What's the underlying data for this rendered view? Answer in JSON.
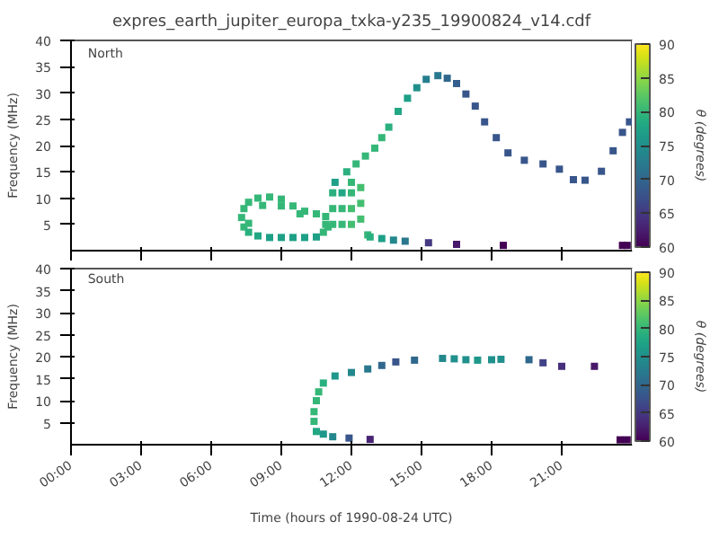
{
  "chart_data": [
    {
      "type": "scatter",
      "title": "expres_earth_jupiter_europa_txka-y235_19900824_v14.cdf",
      "ylabel": "Frequency (MHz)",
      "clabel": "θ (degrees)",
      "annotations": [
        "North"
      ],
      "marker": "square",
      "grid": false,
      "tick_labels": "y",
      "xlim": [
        0,
        24
      ],
      "xticks": [
        {
          "value": 0,
          "label": null
        },
        {
          "value": 3,
          "label": null
        },
        {
          "value": 6,
          "label": null
        },
        {
          "value": 9,
          "label": null
        },
        {
          "value": 12,
          "label": null
        },
        {
          "value": 15,
          "label": null
        },
        {
          "value": 18,
          "label": null
        },
        {
          "value": 21,
          "label": null
        }
      ],
      "ylim": [
        0,
        40
      ],
      "yticks": [
        5,
        10,
        15,
        20,
        25,
        30,
        35,
        40
      ],
      "clim": [
        60,
        90
      ],
      "cticks": [
        60,
        65,
        70,
        75,
        80,
        85,
        90
      ],
      "x": [
        7.3,
        7.4,
        7.6,
        8.0,
        8.5,
        9.0,
        9.5,
        10.0,
        10.5,
        10.9,
        7.4,
        7.6,
        8.0,
        8.5,
        9.0,
        9.5,
        10.0,
        10.5,
        10.8,
        10.9,
        8.2,
        9.0,
        9.8,
        7.6,
        11.2,
        11.2,
        11.2,
        11.6,
        11.6,
        11.6,
        12.0,
        12.0,
        12.0,
        12.0,
        12.4,
        12.4,
        12.4,
        12.7,
        11.0,
        11.3,
        11.8,
        12.2,
        12.6,
        13.0,
        13.3,
        13.6,
        14.0,
        14.4,
        14.8,
        15.2,
        15.7,
        16.1,
        16.5,
        16.9,
        17.3,
        17.7,
        18.2,
        18.7,
        19.4,
        20.2,
        20.9,
        21.5,
        22.0,
        22.7,
        23.2,
        23.6,
        23.9,
        12.8,
        13.3,
        13.8,
        14.3,
        15.3,
        16.5,
        18.5,
        23.6,
        23.8
      ],
      "values": [
        6.3,
        8,
        9.2,
        10,
        10.2,
        9.8,
        8.5,
        7.5,
        7,
        6.5,
        4.5,
        3.5,
        2.8,
        2.5,
        2.5,
        2.5,
        2.5,
        2.6,
        3.5,
        5,
        8.6,
        8.5,
        7,
        5.2,
        5,
        8,
        11,
        5,
        8,
        11,
        5,
        8,
        11,
        13,
        6,
        9,
        12,
        3,
        4.5,
        13,
        15,
        16.5,
        18,
        19.5,
        21.5,
        23.5,
        26.5,
        29,
        31,
        32.6,
        33.3,
        32.8,
        31.8,
        29.8,
        27.5,
        24.5,
        21.5,
        18.6,
        17.2,
        16.5,
        15.5,
        13.5,
        13.4,
        15.1,
        19,
        22.5,
        24.5,
        2.6,
        2.3,
        2.0,
        1.8,
        1.5,
        1.2,
        1.0,
        1.0,
        1.0
      ],
      "cvalues": [
        80,
        80,
        80,
        80,
        80,
        80,
        80,
        80,
        80,
        80,
        80,
        79,
        78,
        77,
        77,
        77,
        77,
        77,
        80,
        80,
        80,
        80,
        80,
        80,
        80,
        80,
        79,
        80,
        80,
        78,
        81,
        81,
        80,
        80,
        81,
        81,
        81,
        80,
        80,
        77,
        79,
        80,
        80,
        80,
        80,
        79,
        78,
        77,
        75,
        73,
        72,
        70,
        69,
        68,
        68,
        68,
        68,
        68,
        68,
        68,
        68,
        68,
        68,
        68,
        68,
        68,
        68,
        79,
        77,
        74,
        72,
        65,
        62,
        60,
        60,
        60
      ]
    },
    {
      "type": "scatter",
      "xlabel": "Time (hours of 1990-08-24 UTC)",
      "ylabel": "Frequency (MHz)",
      "clabel": "θ (degrees)",
      "annotations": [
        "South"
      ],
      "marker": "square",
      "grid": false,
      "xlim": [
        0,
        24
      ],
      "xticks": [
        {
          "value": 0,
          "label": "00:00"
        },
        {
          "value": 3,
          "label": "03:00"
        },
        {
          "value": 6,
          "label": "06:00"
        },
        {
          "value": 9,
          "label": "09:00"
        },
        {
          "value": 12,
          "label": "12:00"
        },
        {
          "value": 15,
          "label": "15:00"
        },
        {
          "value": 18,
          "label": "18:00"
        },
        {
          "value": 21,
          "label": "21:00"
        }
      ],
      "ylim": [
        0,
        40
      ],
      "yticks": [
        5,
        10,
        15,
        20,
        25,
        30,
        35,
        40
      ],
      "clim": [
        60,
        90
      ],
      "cticks": [
        60,
        65,
        70,
        75,
        80,
        85,
        90
      ],
      "x": [
        11.2,
        10.8,
        10.5,
        10.4,
        10.4,
        10.5,
        10.6,
        10.8,
        11.3,
        12.0,
        12.7,
        13.3,
        13.9,
        14.7,
        15.9,
        16.4,
        16.9,
        17.4,
        18.0,
        18.4,
        19.6,
        20.2,
        21.0,
        22.4,
        11.9,
        12.8,
        23.5,
        23.8
      ],
      "values": [
        1.8,
        2.4,
        3.0,
        5.3,
        7.5,
        10,
        12,
        14.0,
        15.6,
        16.4,
        17.2,
        18.0,
        18.8,
        19.2,
        19.6,
        19.5,
        19.3,
        19.2,
        19.3,
        19.4,
        19.3,
        18.6,
        17.8,
        17.8,
        1.5,
        1.2,
        1.1,
        1.1
      ],
      "cvalues": [
        74,
        76,
        78,
        80,
        80,
        80,
        80,
        79,
        76,
        74,
        72,
        70,
        68,
        70,
        74,
        75,
        75,
        76,
        75,
        75,
        70,
        66,
        64,
        62,
        68,
        63,
        60,
        60
      ]
    }
  ]
}
